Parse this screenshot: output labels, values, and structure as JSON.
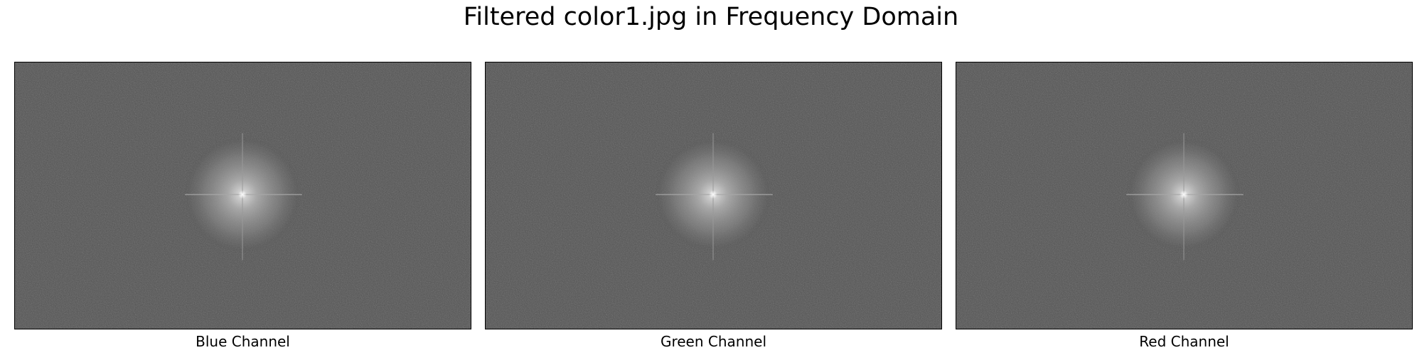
{
  "title": "Filtered color1.jpg in Frequency Domain",
  "panels": [
    {
      "label": "Blue Channel"
    },
    {
      "label": "Green Channel"
    },
    {
      "label": "Red Channel"
    }
  ],
  "colors": {
    "background": "#ffffff",
    "spectrum_base": "#525252",
    "spectrum_peak": "#e6e6e6"
  }
}
